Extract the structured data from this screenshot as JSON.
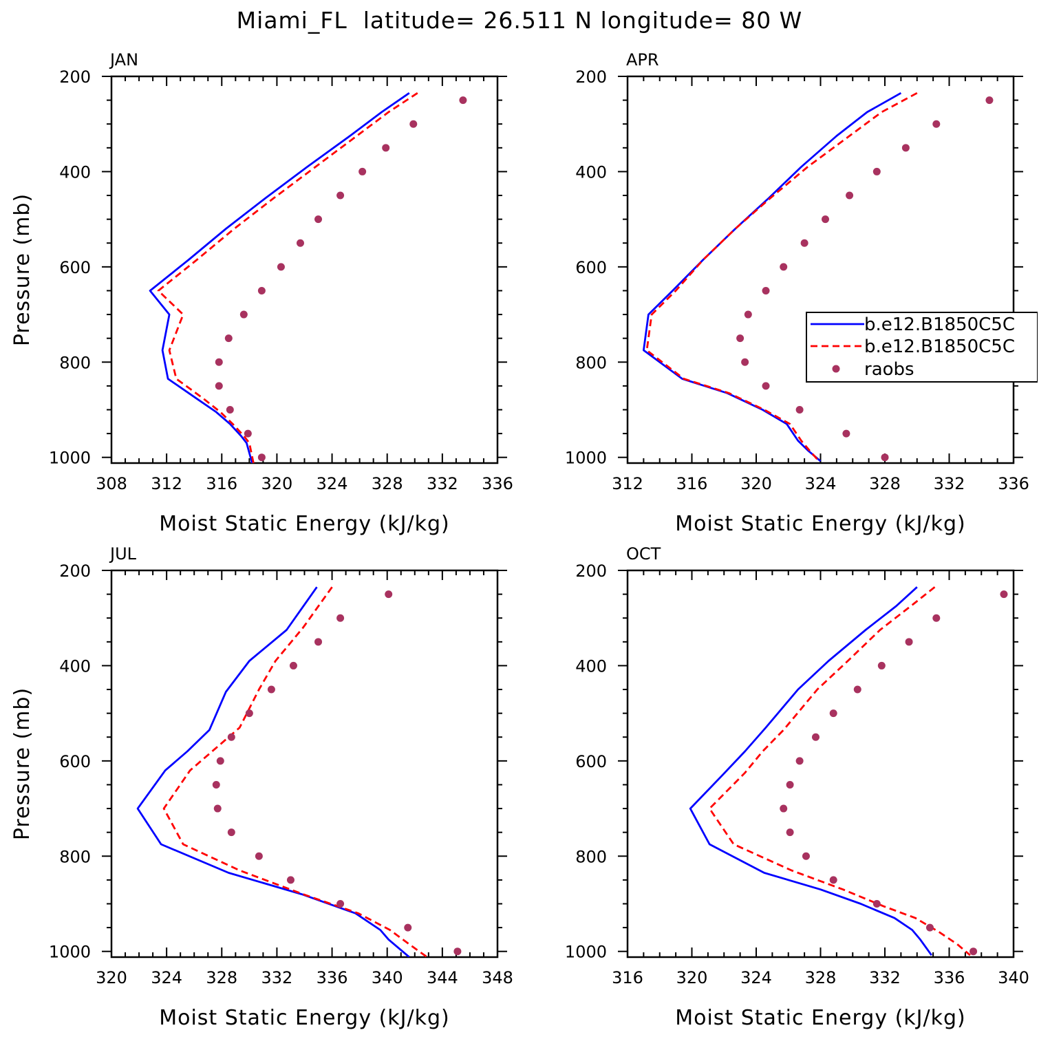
{
  "title": "Miami_FL  latitude= 26.511 N longitude= 80 W",
  "legend": {
    "placement": "inside right of APR panel",
    "entries": [
      {
        "label": "b.e12.B1850C5C",
        "style": "solid",
        "color": "#0000ff"
      },
      {
        "label": "b.e12.B1850C5C",
        "style": "dashed",
        "color": "#ff0000"
      },
      {
        "label": "raobs",
        "style": "marker",
        "color": "#a8325f"
      }
    ]
  },
  "colors": {
    "model1": "#0000ff",
    "model2": "#ff0000",
    "raobs": "#a8325f"
  },
  "chart_data": [
    {
      "type": "line",
      "panel_label": "JAN",
      "xlabel": "Moist Static Energy (kJ/kg)",
      "ylabel": "Pressure (mb)",
      "xlim": [
        308,
        336
      ],
      "ylim": [
        1000,
        200
      ],
      "xticks": [
        308,
        312,
        316,
        320,
        324,
        328,
        332,
        336
      ],
      "yticks": [
        200,
        400,
        600,
        800,
        1000
      ],
      "series": [
        {
          "name": "b.e12.B1850C5C",
          "style": "solid",
          "points": [
            [
              329.6,
              235
            ],
            [
              327.6,
              275
            ],
            [
              325.3,
              325
            ],
            [
              322.2,
              390
            ],
            [
              319.2,
              455
            ],
            [
              316.3,
              520
            ],
            [
              313.6,
              585
            ],
            [
              310.8,
              650
            ],
            [
              312.2,
              700
            ],
            [
              311.7,
              775
            ],
            [
              312.1,
              835
            ],
            [
              314.1,
              875
            ],
            [
              315.6,
              905
            ],
            [
              316.6,
              930
            ],
            [
              317.4,
              955
            ],
            [
              317.8,
              970
            ],
            [
              318.2,
              1012
            ]
          ]
        },
        {
          "name": "b.e12.B1850C5C",
          "style": "dashed",
          "points": [
            [
              330.2,
              235
            ],
            [
              328.1,
              275
            ],
            [
              325.8,
              325
            ],
            [
              322.8,
              390
            ],
            [
              319.8,
              455
            ],
            [
              316.9,
              520
            ],
            [
              314.2,
              585
            ],
            [
              311.4,
              650
            ],
            [
              313.2,
              700
            ],
            [
              312.2,
              775
            ],
            [
              312.7,
              835
            ],
            [
              314.6,
              875
            ],
            [
              315.9,
              905
            ],
            [
              316.8,
              930
            ],
            [
              317.6,
              955
            ],
            [
              318.0,
              970
            ],
            [
              318.3,
              1012
            ]
          ]
        },
        {
          "name": "raobs",
          "style": "marker",
          "points": [
            [
              333.5,
              250
            ],
            [
              329.9,
              300
            ],
            [
              327.9,
              350
            ],
            [
              326.2,
              400
            ],
            [
              324.6,
              450
            ],
            [
              323.0,
              500
            ],
            [
              321.7,
              550
            ],
            [
              320.3,
              600
            ],
            [
              318.9,
              650
            ],
            [
              317.6,
              700
            ],
            [
              316.5,
              750
            ],
            [
              315.8,
              800
            ],
            [
              315.8,
              850
            ],
            [
              316.6,
              900
            ],
            [
              317.9,
              950
            ],
            [
              318.9,
              1000
            ]
          ]
        }
      ]
    },
    {
      "type": "line",
      "panel_label": "APR",
      "xlabel": "Moist Static Energy (kJ/kg)",
      "ylabel": "",
      "xlim": [
        312,
        336
      ],
      "ylim": [
        1000,
        200
      ],
      "xticks": [
        312,
        316,
        320,
        324,
        328,
        332,
        336
      ],
      "yticks": [
        200,
        400,
        600,
        800,
        1000
      ],
      "series": [
        {
          "name": "b.e12.B1850C5C",
          "style": "solid",
          "points": [
            [
              329.0,
              235
            ],
            [
              326.9,
              275
            ],
            [
              325.0,
              325
            ],
            [
              322.8,
              390
            ],
            [
              320.8,
              455
            ],
            [
              318.7,
              520
            ],
            [
              316.7,
              585
            ],
            [
              314.8,
              650
            ],
            [
              313.3,
              700
            ],
            [
              313.0,
              775
            ],
            [
              315.4,
              835
            ],
            [
              318.2,
              865
            ],
            [
              320.4,
              900
            ],
            [
              321.9,
              930
            ],
            [
              322.6,
              965
            ],
            [
              323.2,
              985
            ],
            [
              324.0,
              1008
            ]
          ]
        },
        {
          "name": "b.e12.B1850C5C",
          "style": "dashed",
          "points": [
            [
              330.0,
              235
            ],
            [
              327.8,
              275
            ],
            [
              325.8,
              325
            ],
            [
              323.2,
              390
            ],
            [
              320.9,
              455
            ],
            [
              318.7,
              520
            ],
            [
              316.7,
              585
            ],
            [
              315.0,
              650
            ],
            [
              313.5,
              700
            ],
            [
              313.2,
              775
            ],
            [
              315.5,
              835
            ],
            [
              318.3,
              865
            ],
            [
              320.5,
              900
            ],
            [
              322.1,
              930
            ],
            [
              322.8,
              965
            ],
            [
              323.3,
              985
            ],
            [
              323.9,
              1008
            ]
          ]
        },
        {
          "name": "raobs",
          "style": "marker",
          "points": [
            [
              334.5,
              250
            ],
            [
              331.2,
              300
            ],
            [
              329.3,
              350
            ],
            [
              327.5,
              400
            ],
            [
              325.8,
              450
            ],
            [
              324.3,
              500
            ],
            [
              323.0,
              550
            ],
            [
              321.7,
              600
            ],
            [
              320.6,
              650
            ],
            [
              319.5,
              700
            ],
            [
              319.0,
              750
            ],
            [
              319.3,
              800
            ],
            [
              320.6,
              850
            ],
            [
              322.7,
              900
            ],
            [
              325.6,
              950
            ],
            [
              328.0,
              1000
            ]
          ]
        }
      ]
    },
    {
      "type": "line",
      "panel_label": "JUL",
      "xlabel": "Moist Static Energy (kJ/kg)",
      "ylabel": "Pressure (mb)",
      "xlim": [
        320,
        348
      ],
      "ylim": [
        1000,
        200
      ],
      "xticks": [
        320,
        324,
        328,
        332,
        336,
        340,
        344,
        348
      ],
      "yticks": [
        200,
        400,
        600,
        800,
        1000
      ],
      "series": [
        {
          "name": "b.e12.B1850C5C",
          "style": "solid",
          "points": [
            [
              334.9,
              235
            ],
            [
              332.7,
              325
            ],
            [
              330.0,
              390
            ],
            [
              328.3,
              455
            ],
            [
              327.1,
              535
            ],
            [
              325.5,
              580
            ],
            [
              323.9,
              620
            ],
            [
              321.9,
              700
            ],
            [
              323.6,
              775
            ],
            [
              328.5,
              835
            ],
            [
              333.8,
              880
            ],
            [
              337.7,
              920
            ],
            [
              339.5,
              955
            ],
            [
              340.1,
              975
            ],
            [
              341.6,
              1012
            ]
          ]
        },
        {
          "name": "b.e12.B1850C5C",
          "style": "dashed",
          "points": [
            [
              336.0,
              235
            ],
            [
              333.9,
              320
            ],
            [
              331.9,
              390
            ],
            [
              330.7,
              450
            ],
            [
              329.3,
              530
            ],
            [
              327.7,
              570
            ],
            [
              325.7,
              620
            ],
            [
              323.8,
              700
            ],
            [
              325.2,
              775
            ],
            [
              329.3,
              830
            ],
            [
              333.9,
              880
            ],
            [
              337.9,
              920
            ],
            [
              340.2,
              955
            ],
            [
              341.6,
              985
            ],
            [
              342.9,
              1012
            ]
          ]
        },
        {
          "name": "raobs",
          "style": "marker",
          "points": [
            [
              340.1,
              250
            ],
            [
              336.6,
              300
            ],
            [
              335.0,
              350
            ],
            [
              333.2,
              400
            ],
            [
              331.6,
              450
            ],
            [
              330.0,
              500
            ],
            [
              328.7,
              550
            ],
            [
              327.9,
              600
            ],
            [
              327.6,
              650
            ],
            [
              327.7,
              700
            ],
            [
              328.7,
              750
            ],
            [
              330.7,
              800
            ],
            [
              333.0,
              850
            ],
            [
              336.6,
              900
            ],
            [
              341.5,
              950
            ],
            [
              345.1,
              1000
            ]
          ]
        }
      ]
    },
    {
      "type": "line",
      "panel_label": "OCT",
      "xlabel": "Moist Static Energy (kJ/kg)",
      "ylabel": "",
      "xlim": [
        316,
        340
      ],
      "ylim": [
        1000,
        200
      ],
      "xticks": [
        316,
        320,
        324,
        328,
        332,
        336,
        340
      ],
      "yticks": [
        200,
        400,
        600,
        800,
        1000
      ],
      "series": [
        {
          "name": "b.e12.B1850C5C",
          "style": "solid",
          "points": [
            [
              334.0,
              235
            ],
            [
              332.7,
              275
            ],
            [
              330.8,
              325
            ],
            [
              328.5,
              390
            ],
            [
              326.6,
              450
            ],
            [
              324.6,
              530
            ],
            [
              323.3,
              580
            ],
            [
              321.9,
              630
            ],
            [
              319.9,
              700
            ],
            [
              321.1,
              775
            ],
            [
              324.5,
              835
            ],
            [
              328.0,
              870
            ],
            [
              330.5,
              900
            ],
            [
              332.6,
              930
            ],
            [
              333.7,
              955
            ],
            [
              334.2,
              975
            ],
            [
              334.9,
              1008
            ]
          ]
        },
        {
          "name": "b.e12.B1850C5C",
          "style": "dashed",
          "points": [
            [
              335.1,
              235
            ],
            [
              333.8,
              270
            ],
            [
              331.7,
              325
            ],
            [
              329.7,
              390
            ],
            [
              327.8,
              450
            ],
            [
              325.7,
              535
            ],
            [
              324.4,
              580
            ],
            [
              323.3,
              625
            ],
            [
              321.1,
              700
            ],
            [
              322.6,
              775
            ],
            [
              326.2,
              830
            ],
            [
              329.4,
              870
            ],
            [
              331.9,
              905
            ],
            [
              333.9,
              930
            ],
            [
              335.4,
              960
            ],
            [
              336.5,
              985
            ],
            [
              337.3,
              1008
            ]
          ]
        },
        {
          "name": "raobs",
          "style": "marker",
          "points": [
            [
              339.4,
              250
            ],
            [
              335.2,
              300
            ],
            [
              333.5,
              350
            ],
            [
              331.8,
              400
            ],
            [
              330.3,
              450
            ],
            [
              328.8,
              500
            ],
            [
              327.7,
              550
            ],
            [
              326.7,
              600
            ],
            [
              326.1,
              650
            ],
            [
              325.7,
              700
            ],
            [
              326.1,
              750
            ],
            [
              327.1,
              800
            ],
            [
              328.8,
              850
            ],
            [
              331.5,
              900
            ],
            [
              334.8,
              950
            ],
            [
              337.5,
              1000
            ]
          ]
        }
      ]
    }
  ]
}
